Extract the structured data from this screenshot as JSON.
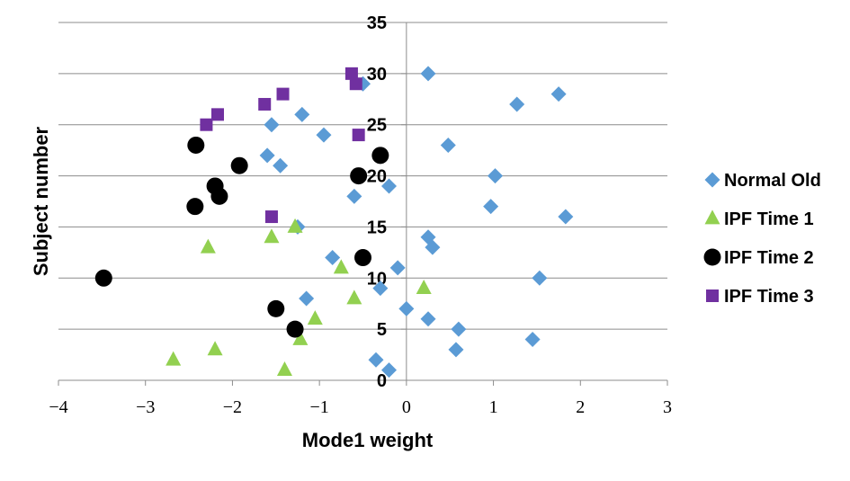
{
  "chart_data": {
    "type": "scatter",
    "xlabel": "Mode1 weight",
    "ylabel": "Subject number",
    "xlim": [
      -4,
      3
    ],
    "ylim": [
      0,
      35
    ],
    "x_ticks": [
      "−4",
      "−3",
      "−2",
      "−1",
      "0",
      "1",
      "2",
      "3"
    ],
    "y_ticks": [
      "0",
      "5",
      "10",
      "15",
      "20",
      "25",
      "30",
      "35"
    ],
    "grid": "horizontal",
    "legend_position": "right",
    "series": [
      {
        "name": "Normal Old",
        "marker": "diamond",
        "color": "#5B9BD5",
        "points": [
          [
            -0.35,
            2
          ],
          [
            -0.2,
            1
          ],
          [
            0.57,
            3
          ],
          [
            1.45,
            4
          ],
          [
            0.6,
            5
          ],
          [
            0.25,
            6
          ],
          [
            0.0,
            7
          ],
          [
            -1.15,
            8
          ],
          [
            -0.3,
            9
          ],
          [
            1.53,
            10
          ],
          [
            -0.1,
            11
          ],
          [
            -0.85,
            12
          ],
          [
            0.3,
            13
          ],
          [
            0.25,
            14
          ],
          [
            -1.25,
            15
          ],
          [
            1.83,
            16
          ],
          [
            0.97,
            17
          ],
          [
            -0.6,
            18
          ],
          [
            -0.2,
            19
          ],
          [
            1.02,
            20
          ],
          [
            -1.45,
            21
          ],
          [
            -1.6,
            22
          ],
          [
            0.48,
            23
          ],
          [
            -0.95,
            24
          ],
          [
            -1.55,
            25
          ],
          [
            -1.2,
            26
          ],
          [
            1.27,
            27
          ],
          [
            1.75,
            28
          ],
          [
            -0.5,
            29
          ],
          [
            0.25,
            30
          ]
        ]
      },
      {
        "name": "IPF Time 1",
        "marker": "triangle",
        "color": "#92D050",
        "points": [
          [
            -2.68,
            2
          ],
          [
            -2.2,
            3
          ],
          [
            -1.22,
            4
          ],
          [
            -1.4,
            1
          ],
          [
            -1.05,
            6
          ],
          [
            -0.6,
            8
          ],
          [
            0.2,
            9
          ],
          [
            -0.75,
            11
          ],
          [
            -2.28,
            13
          ],
          [
            -1.55,
            14
          ],
          [
            -1.28,
            15
          ]
        ]
      },
      {
        "name": "IPF Time 2",
        "marker": "circle",
        "color": "#000000",
        "points": [
          [
            -3.48,
            10
          ],
          [
            -1.5,
            7
          ],
          [
            -1.28,
            5
          ],
          [
            -0.5,
            12
          ],
          [
            -2.43,
            17
          ],
          [
            -2.15,
            18
          ],
          [
            -2.2,
            19
          ],
          [
            -1.92,
            21
          ],
          [
            -0.55,
            20
          ],
          [
            -0.3,
            22
          ],
          [
            -2.42,
            23
          ]
        ]
      },
      {
        "name": "IPF Time 3",
        "marker": "square",
        "color": "#7030A0",
        "points": [
          [
            -2.3,
            25
          ],
          [
            -2.17,
            26
          ],
          [
            -1.63,
            27
          ],
          [
            -1.42,
            28
          ],
          [
            -0.63,
            30
          ],
          [
            -0.58,
            29
          ],
          [
            -0.55,
            24
          ],
          [
            -1.55,
            16
          ]
        ]
      }
    ]
  }
}
